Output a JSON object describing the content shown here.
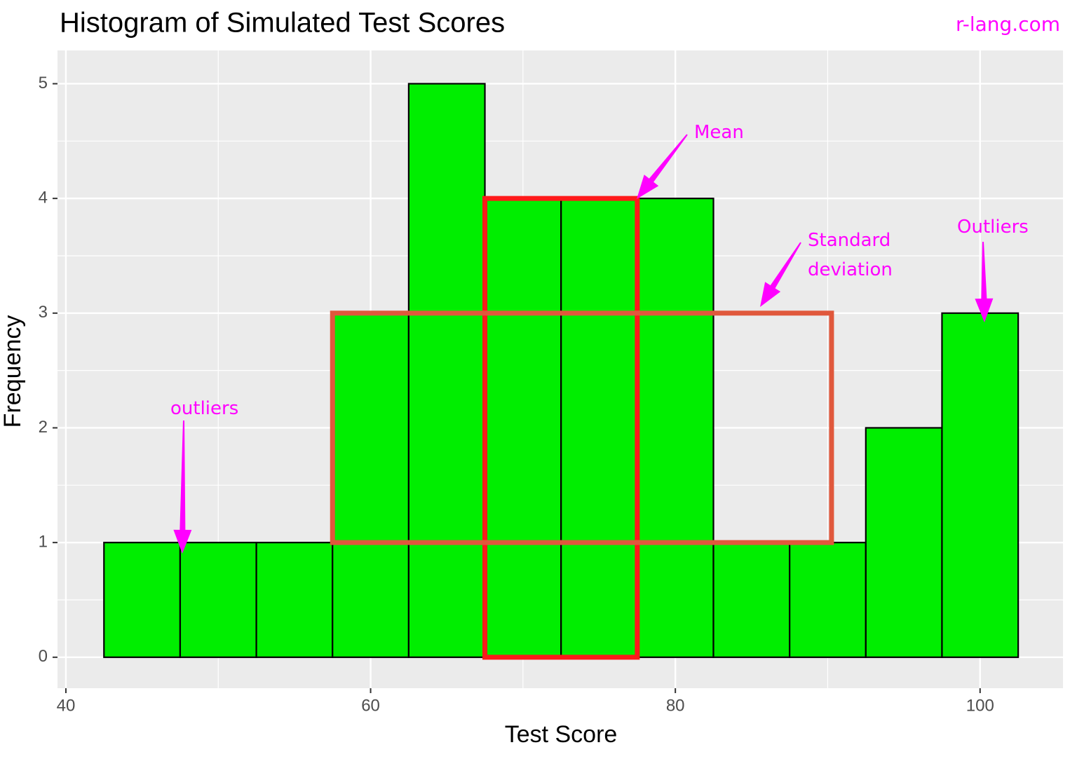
{
  "chart_data": {
    "type": "histogram",
    "title": "Histogram of Simulated Test Scores",
    "watermark": "r-lang.com",
    "x_label": "Test Score",
    "y_label": "Frequency",
    "bins": [
      42.5,
      47.5,
      52.5,
      57.5,
      62.5,
      67.5,
      72.5,
      77.5,
      82.5,
      87.5,
      92.5,
      97.5,
      102.5
    ],
    "values": [
      1,
      1,
      1,
      3,
      5,
      4,
      4,
      4,
      1,
      1,
      2,
      3
    ],
    "color": "#00ee00",
    "xlim": [
      39.45,
      105.44
    ],
    "ylim": [
      -0.27,
      5.29
    ],
    "xticks": [
      40,
      60,
      80,
      100
    ],
    "yticks": [
      0,
      1,
      2,
      3,
      4,
      5
    ],
    "grid": true,
    "highlights": [
      {
        "x": [
          67.5,
          77.5
        ],
        "y": [
          0,
          4
        ],
        "color": "#ff1a1a"
      },
      {
        "x": [
          57.5,
          90.25
        ],
        "y": [
          1,
          3
        ],
        "color": "#e0583c"
      }
    ],
    "annotations": [
      {
        "text": "Mean"
      },
      {
        "text": "Standard deviation"
      },
      {
        "text": "Outliers"
      },
      {
        "text": "outliers"
      }
    ]
  }
}
